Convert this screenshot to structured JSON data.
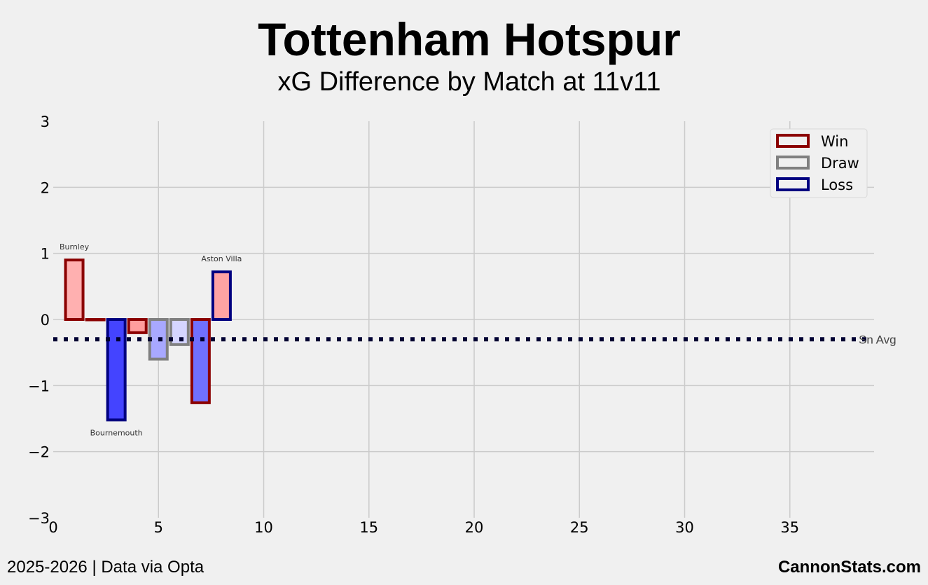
{
  "header": {
    "title": "Tottenham Hotspur",
    "subtitle": "xG Difference by Match at 11v11"
  },
  "footer": {
    "left": "2025-2026 | Data via Opta",
    "right": "CannonStats.com"
  },
  "colors": {
    "win_edge": "#8b0000",
    "draw_edge": "#808080",
    "loss_edge": "#000080",
    "avg_line": "#000033",
    "grid": "#cbcbcb",
    "background": "#f0f0f0"
  },
  "chart_data": {
    "type": "bar",
    "xlim": [
      0,
      39
    ],
    "ylim": [
      -3,
      3
    ],
    "xticks": [
      "0",
      "5",
      "10",
      "15",
      "20",
      "25",
      "30",
      "35"
    ],
    "xtick_values": [
      0,
      5,
      10,
      15,
      20,
      25,
      30,
      35
    ],
    "yticks": [
      "3",
      "2",
      "1",
      "0",
      "−1",
      "−2",
      "−3"
    ],
    "ytick_values": [
      3,
      2,
      1,
      0,
      -1,
      -2,
      -3
    ],
    "grid": true,
    "legend_position": "top-right",
    "legend": [
      {
        "label": "Win",
        "edge": "#8b0000"
      },
      {
        "label": "Draw",
        "edge": "#808080"
      },
      {
        "label": "Loss",
        "edge": "#000080"
      }
    ],
    "bars": [
      {
        "x": 1,
        "value": 0.9,
        "result": "win",
        "fill": "#ffb0b0",
        "edge": "#8b0000",
        "label": "Burnley"
      },
      {
        "x": 2,
        "value": 0.0,
        "result": "win",
        "fill": "#ffb0b0",
        "edge": "#8b0000",
        "label": ""
      },
      {
        "x": 3,
        "value": -1.52,
        "result": "loss",
        "fill": "#4444ff",
        "edge": "#000080",
        "label": "Bournemouth"
      },
      {
        "x": 4,
        "value": -0.2,
        "result": "win",
        "fill": "#ff9d9d",
        "edge": "#8b0000",
        "label": ""
      },
      {
        "x": 5,
        "value": -0.6,
        "result": "draw",
        "fill": "#a8a8ff",
        "edge": "#808080",
        "label": ""
      },
      {
        "x": 6,
        "value": -0.38,
        "result": "draw",
        "fill": "#d5d5ff",
        "edge": "#808080",
        "label": ""
      },
      {
        "x": 7,
        "value": -1.26,
        "result": "win",
        "fill": "#7070ff",
        "edge": "#8b0000",
        "label": ""
      },
      {
        "x": 8,
        "value": 0.72,
        "result": "loss",
        "fill": "#ffa3a3",
        "edge": "#000080",
        "label": "Aston Villa"
      }
    ],
    "average": {
      "value": -0.3,
      "label": "Sn Avg"
    }
  }
}
